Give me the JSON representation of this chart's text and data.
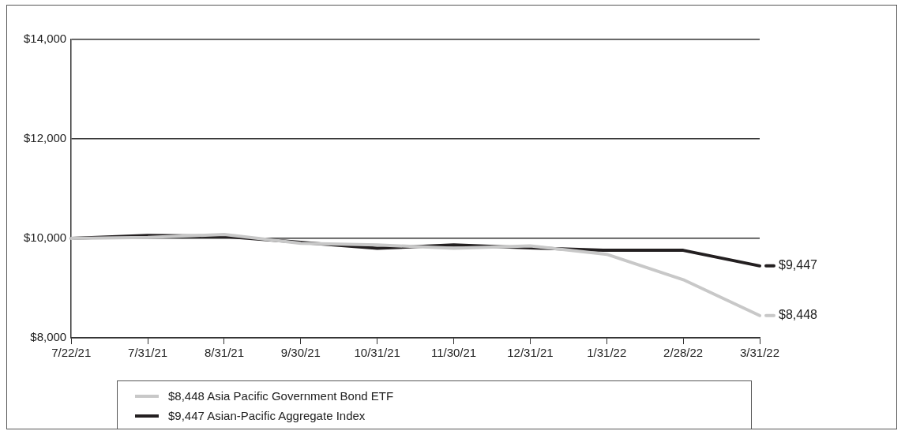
{
  "chart_data": {
    "type": "line",
    "categories": [
      "7/22/21",
      "7/31/21",
      "8/31/21",
      "9/30/21",
      "10/31/21",
      "11/30/21",
      "12/31/21",
      "1/31/22",
      "2/28/22",
      "3/31/22"
    ],
    "series": [
      {
        "name": "$8,448 Asia Pacific Government Bond ETF",
        "color": "#c8c8c8",
        "values": [
          10000,
          10020,
          10080,
          9900,
          9870,
          9800,
          9850,
          9680,
          9170,
          8448
        ],
        "value_labels": [
          null,
          null,
          null,
          null,
          null,
          null,
          null,
          null,
          null,
          "$8,448"
        ]
      },
      {
        "name": "$9,447 Asian-Pacific Aggregate Index",
        "color": "#231f20",
        "values": [
          10000,
          10060,
          10040,
          9920,
          9800,
          9870,
          9810,
          9760,
          9760,
          9447
        ],
        "value_labels": [
          null,
          null,
          null,
          null,
          null,
          null,
          null,
          null,
          null,
          "$9,447"
        ]
      }
    ],
    "ylim": [
      8000,
      14000
    ],
    "yticks": [
      {
        "value": 8000,
        "label": "$8,000"
      },
      {
        "value": 10000,
        "label": "$10,000"
      },
      {
        "value": 12000,
        "label": "$12,000"
      },
      {
        "value": 14000,
        "label": "$14,000"
      }
    ],
    "grid": "y",
    "legend": "bottom",
    "marker": "none",
    "line_style": "solid"
  }
}
